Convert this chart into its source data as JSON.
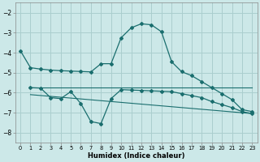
{
  "xlabel": "Humidex (Indice chaleur)",
  "bg_color": "#cce8e8",
  "grid_color": "#aacece",
  "line_color": "#1a6e6e",
  "xlim": [
    -0.5,
    23.5
  ],
  "ylim": [
    -8.5,
    -1.5
  ],
  "yticks": [
    -8,
    -7,
    -6,
    -5,
    -4,
    -3,
    -2
  ],
  "xticks": [
    0,
    1,
    2,
    3,
    4,
    5,
    6,
    7,
    8,
    9,
    10,
    11,
    12,
    13,
    14,
    15,
    16,
    17,
    18,
    19,
    20,
    21,
    22,
    23
  ],
  "series1_x": [
    0,
    1,
    2,
    3,
    4,
    5,
    6,
    7,
    8,
    9,
    10,
    11,
    12,
    13,
    14,
    15,
    16,
    17,
    18,
    19,
    20,
    21,
    22,
    23
  ],
  "series1_y": [
    -3.9,
    -4.75,
    -4.82,
    -4.87,
    -4.9,
    -4.92,
    -4.94,
    -4.96,
    -4.55,
    -4.55,
    -3.25,
    -2.75,
    -2.55,
    -2.6,
    -2.95,
    -4.45,
    -4.95,
    -5.15,
    -5.45,
    -5.75,
    -6.05,
    -6.35,
    -6.85,
    -6.95
  ],
  "series2_x": [
    1,
    2,
    3,
    4,
    5,
    6,
    7,
    8,
    9,
    10,
    11,
    12,
    13,
    14,
    15,
    16,
    17,
    18,
    19,
    20,
    21,
    22,
    23
  ],
  "series2_y": [
    -5.75,
    -5.77,
    -6.25,
    -6.3,
    -5.95,
    -6.55,
    -7.45,
    -7.55,
    -6.3,
    -5.85,
    -5.87,
    -5.89,
    -5.91,
    -5.93,
    -5.95,
    -6.05,
    -6.15,
    -6.25,
    -6.45,
    -6.6,
    -6.75,
    -6.95,
    -7.05
  ],
  "series3_x": [
    1,
    23
  ],
  "series3_y": [
    -5.75,
    -5.75
  ],
  "series4_x": [
    1,
    23
  ],
  "series4_y": [
    -6.1,
    -7.05
  ]
}
